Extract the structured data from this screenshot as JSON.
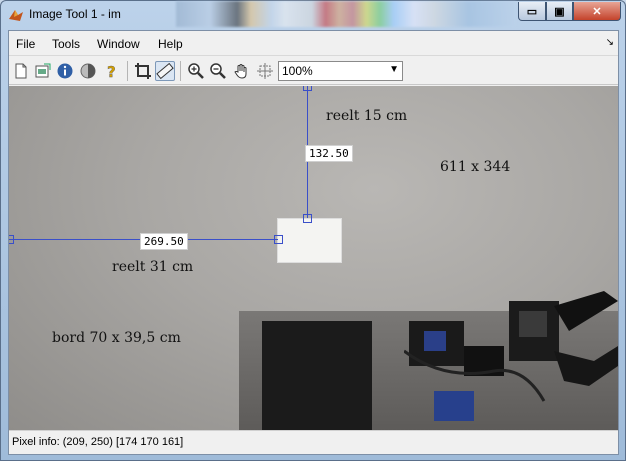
{
  "window": {
    "title": "Image Tool 1 - im",
    "min_glyph": "▭",
    "max_glyph": "▣",
    "close_glyph": "✕"
  },
  "menu": {
    "items": [
      "File",
      "Tools",
      "Window",
      "Help"
    ],
    "dock_glyph": "↘"
  },
  "toolbar": {
    "icons": [
      "new-figure-icon",
      "export-icon",
      "info-icon",
      "contrast-icon",
      "help-icon",
      "crop-icon",
      "measure-distance-icon",
      "zoom-in-icon",
      "zoom-out-icon",
      "pan-hand-icon",
      "overview-icon"
    ],
    "zoom_value": "100%"
  },
  "image": {
    "measure_vertical_label": "132.50",
    "measure_horizontal_label": "269.50",
    "annotations": {
      "vertical_real": "reelt 15 cm",
      "image_size": "611 x 344",
      "horizontal_real": "reelt 31 cm",
      "table_size": "bord 70 x 39,5 cm"
    }
  },
  "status": {
    "pixel_info": "Pixel info: (209, 250)  [174 170 161]"
  },
  "colors": {
    "measure_line": "#3a4fc9",
    "close_button": "#c4432b"
  }
}
